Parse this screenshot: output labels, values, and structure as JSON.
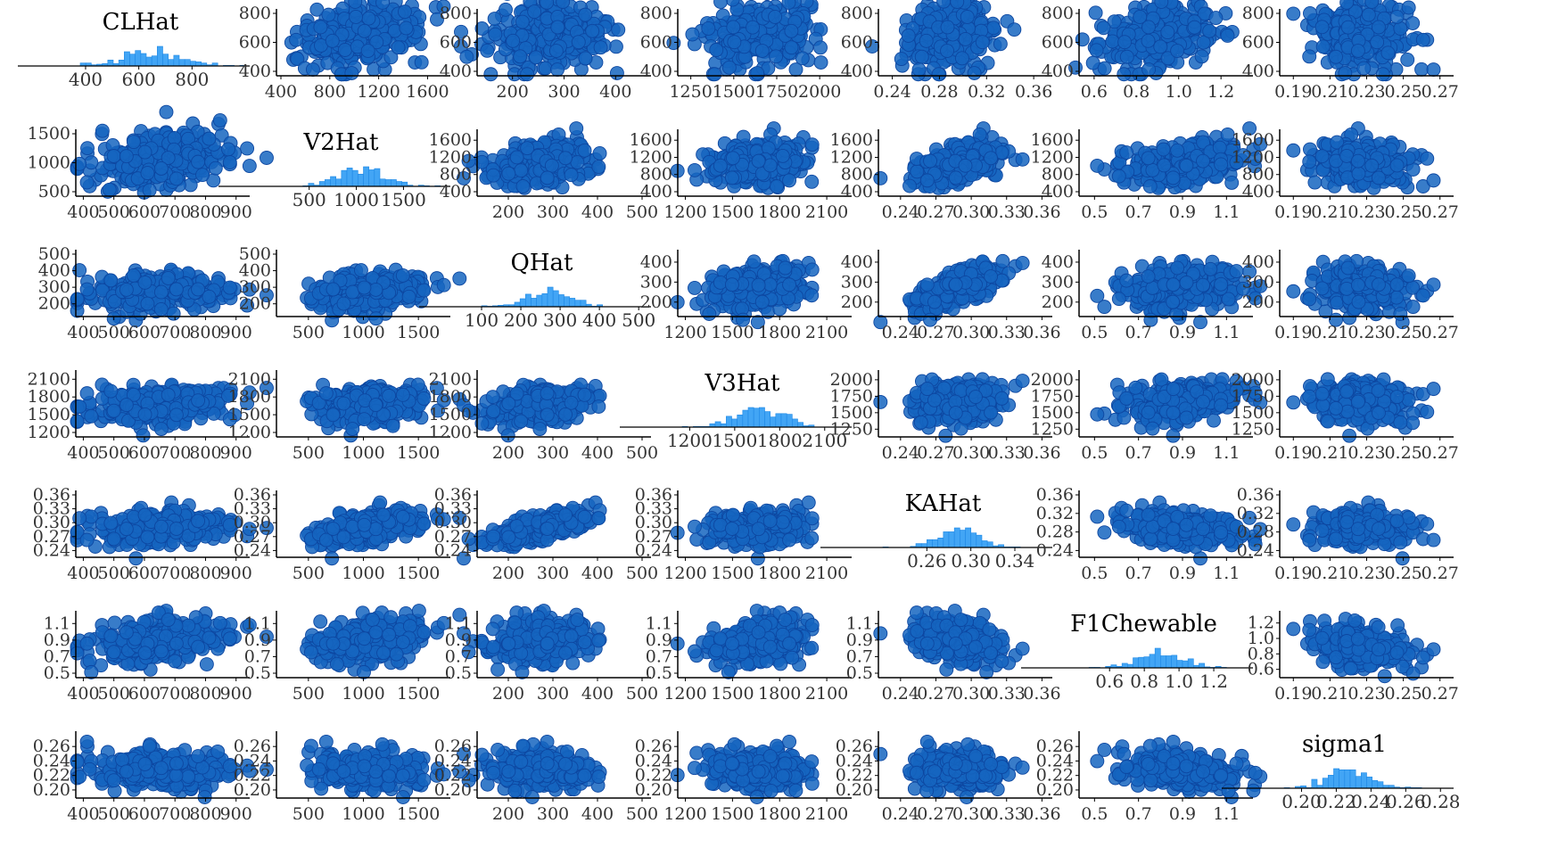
{
  "colors": {
    "point_fill": "#1565C0",
    "point_stroke": "#0D47A1",
    "hist_fill": "#42A5F5",
    "hist_stroke": "#1E88E5",
    "axis": "#000000",
    "tick_text": "#333333"
  },
  "chart_data": {
    "type": "scatter",
    "layout": "pairs-matrix",
    "grid": false,
    "variables": [
      {
        "name": "CLHat",
        "mean": 650,
        "sd": 110,
        "range": [
          380,
          1000
        ],
        "ticks": [
          400,
          600,
          800
        ],
        "hist_ticks": [
          400,
          600,
          800
        ],
        "y_ticks": [
          400,
          600,
          800
        ],
        "x_ticks": [
          400,
          500,
          600,
          700,
          800,
          900
        ],
        "x_range": [
          390,
          930
        ]
      },
      {
        "name": "V2Hat",
        "mean": 1050,
        "sd": 250,
        "range": [
          200,
          1950
        ],
        "hist_ticks": [
          500,
          1000,
          1500
        ],
        "y_ticks": [
          500,
          1000,
          1500
        ],
        "y_ticks_alt": [
          400,
          800,
          1200,
          1600
        ],
        "y_range_alt": [
          400,
          1750
        ],
        "x_ticks": [
          500,
          1000,
          1500
        ],
        "x_range": [
          250,
          1750
        ],
        "x_ticks_first": [
          400,
          800,
          1200,
          1600
        ],
        "x_range_first": [
          400,
          1750
        ]
      },
      {
        "name": "QHat",
        "mean": 270,
        "sd": 60,
        "range": [
          100,
          520
        ],
        "hist_ticks": [
          100,
          200,
          300,
          400,
          500
        ],
        "y_ticks": [
          200,
          300,
          400,
          500
        ],
        "y_range": [
          150,
          500
        ],
        "y_ticks_alt": [
          200,
          300,
          400
        ],
        "y_range_alt": [
          150,
          440
        ],
        "x_ticks": [
          200,
          300,
          400,
          500
        ],
        "x_range": [
          140,
          510
        ],
        "x_ticks_first": [
          200,
          300,
          400
        ],
        "x_range_first": [
          140,
          460
        ]
      },
      {
        "name": "V3Hat",
        "mean": 1650,
        "sd": 160,
        "range": [
          1150,
          2250
        ],
        "hist_ticks": [
          1200,
          1500,
          1800,
          2100
        ],
        "y_ticks": [
          1200,
          1500,
          1800,
          2100
        ],
        "y_range": [
          1200,
          2180
        ],
        "y_ticks_alt": [
          1250,
          1500,
          1750,
          2000
        ],
        "y_range_alt": [
          1200,
          2080
        ],
        "x_ticks": [
          1200,
          1500,
          1800,
          2100
        ],
        "x_range": [
          1180,
          2230
        ],
        "x_ticks_first": [
          1250,
          1500,
          1750,
          2000
        ],
        "x_range_first": [
          1200,
          2160
        ]
      },
      {
        "name": "KAHat",
        "mean": 0.29,
        "sd": 0.02,
        "range": [
          0.22,
          0.37
        ],
        "hist_ticks": [
          0.26,
          0.3,
          0.34
        ],
        "y_ticks": [
          0.24,
          0.27,
          0.3,
          0.33,
          0.36
        ],
        "y_range": [
          0.235,
          0.36
        ],
        "y_ticks_alt": [
          0.24,
          0.28,
          0.32,
          0.36
        ],
        "y_range_alt": [
          0.235,
          0.36
        ],
        "x_ticks": [
          0.24,
          0.27,
          0.3,
          0.33,
          0.36
        ],
        "x_range": [
          0.225,
          0.365
        ],
        "x_ticks_first": [
          0.24,
          0.28,
          0.32,
          0.36
        ],
        "x_range_first": [
          0.232,
          0.372
        ]
      },
      {
        "name": "F1Chewable",
        "mean": 0.88,
        "sd": 0.13,
        "range": [
          0.45,
          1.4
        ],
        "hist_ticks": [
          0.6,
          0.8,
          1.0,
          1.2
        ],
        "y_ticks": [
          0.5,
          0.7,
          0.9,
          1.1
        ],
        "y_range": [
          0.5,
          1.2
        ],
        "y_ticks_alt": [
          0.6,
          0.8,
          1.0,
          1.2
        ],
        "y_range_alt": [
          0.55,
          1.3
        ],
        "x_ticks": [
          0.5,
          0.7,
          0.9,
          1.1
        ],
        "x_range": [
          0.45,
          1.2
        ],
        "x_ticks_first": [
          0.6,
          0.8,
          1.0,
          1.2
        ],
        "x_range_first": [
          0.55,
          1.33
        ]
      },
      {
        "name": "sigma1",
        "mean": 0.228,
        "sd": 0.013,
        "range": [
          0.19,
          0.285
        ],
        "hist_ticks": [
          0.2,
          0.22,
          0.24,
          0.26,
          0.28
        ],
        "y_ticks": [
          0.2,
          0.22,
          0.24,
          0.26
        ],
        "y_range": [
          0.195,
          0.275
        ],
        "x_ticks": [
          0.19,
          0.21,
          0.23,
          0.25,
          0.27
        ],
        "x_range": [
          0.185,
          0.275
        ]
      }
    ],
    "correlations": [
      [
        1.0,
        0.3,
        0.2,
        0.25,
        0.2,
        0.4,
        -0.1
      ],
      [
        0.3,
        1.0,
        0.35,
        0.2,
        0.55,
        0.3,
        -0.15
      ],
      [
        0.2,
        0.35,
        1.0,
        0.3,
        0.75,
        0.2,
        -0.2
      ],
      [
        0.25,
        0.2,
        0.3,
        1.0,
        0.2,
        0.3,
        -0.25
      ],
      [
        0.2,
        0.55,
        0.75,
        0.2,
        1.0,
        -0.2,
        -0.2
      ],
      [
        0.4,
        0.3,
        0.2,
        0.3,
        -0.2,
        1.0,
        -0.25
      ],
      [
        -0.1,
        -0.15,
        -0.2,
        -0.25,
        -0.2,
        -0.25,
        1.0
      ]
    ],
    "points_per_panel": 300,
    "histogram_bins": 30
  }
}
